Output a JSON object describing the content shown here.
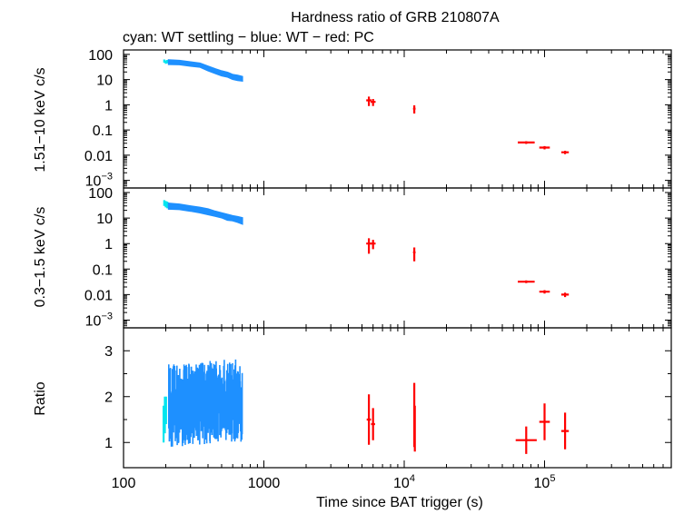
{
  "title": "Hardness ratio of GRB 210807A",
  "subtitle": "cyan: WT settling − blue: WT − red: PC",
  "xlabel": "Time since BAT trigger (s)",
  "colors": {
    "cyan": "#00e5ee",
    "blue": "#1e90ff",
    "red": "#ff0000",
    "axis": "#000000"
  },
  "chart_data": [
    {
      "type": "scatter",
      "ylabel": "1.51−10 keV c/s",
      "xscale": "log",
      "yscale": "log",
      "xlim": [
        100,
        800000
      ],
      "ylim": [
        0.0005,
        150
      ],
      "yticks": [
        {
          "v": 100,
          "label": "100"
        },
        {
          "v": 10,
          "label": "10"
        },
        {
          "v": 1,
          "label": "1"
        },
        {
          "v": 0.1,
          "label": "0.1"
        },
        {
          "v": 0.01,
          "label": "0.01"
        },
        {
          "v": 0.001,
          "label": "10",
          "sup": "−3"
        }
      ],
      "series": [
        {
          "color": "cyan",
          "points": [
            [
              195,
              55,
              8,
              3
            ],
            [
              200,
              50,
              8,
              3
            ],
            [
              205,
              52,
              8,
              3
            ]
          ]
        },
        {
          "color": "blue",
          "band": true,
          "points": [
            [
              210,
              50,
              18
            ],
            [
              250,
              48,
              16
            ],
            [
              300,
              42,
              14
            ],
            [
              350,
              38,
              12
            ],
            [
              400,
              28,
              10
            ],
            [
              450,
              22,
              8
            ],
            [
              500,
              18,
              7
            ],
            [
              550,
              16,
              6
            ],
            [
              600,
              13,
              5
            ],
            [
              650,
              12,
              5
            ],
            [
              700,
              11,
              4
            ]
          ]
        },
        {
          "color": "red",
          "points": [
            [
              5600,
              1.5,
              0.6,
              250
            ],
            [
              6000,
              1.3,
              0.4,
              250
            ],
            [
              11800,
              0.7,
              0.25,
              250
            ],
            [
              74000,
              0.032,
              0.004,
              11000
            ],
            [
              100000,
              0.02,
              0.003,
              9000
            ],
            [
              140000,
              0.013,
              0.002,
              9000
            ]
          ]
        }
      ]
    },
    {
      "type": "scatter",
      "ylabel": "0.3−1.5 keV c/s",
      "xscale": "log",
      "yscale": "log",
      "xlim": [
        100,
        800000
      ],
      "ylim": [
        0.0005,
        150
      ],
      "yticks": [
        {
          "v": 100,
          "label": "100"
        },
        {
          "v": 10,
          "label": "10"
        },
        {
          "v": 1,
          "label": "1"
        },
        {
          "v": 0.1,
          "label": "0.1"
        },
        {
          "v": 0.01,
          "label": "0.01"
        },
        {
          "v": 0.001,
          "label": "10",
          "sup": "−3"
        }
      ],
      "series": [
        {
          "color": "cyan",
          "points": [
            [
              195,
              40,
              10,
              3
            ],
            [
              200,
              36,
              10,
              3
            ],
            [
              205,
              34,
              10,
              3
            ]
          ]
        },
        {
          "color": "blue",
          "band": true,
          "points": [
            [
              210,
              30,
              14
            ],
            [
              250,
              28,
              12
            ],
            [
              300,
              24,
              10
            ],
            [
              350,
              21,
              9
            ],
            [
              400,
              18,
              8
            ],
            [
              450,
              15,
              6
            ],
            [
              500,
              13,
              5
            ],
            [
              550,
              11,
              5
            ],
            [
              600,
              10,
              4
            ],
            [
              650,
              9,
              4
            ],
            [
              700,
              8,
              4
            ]
          ]
        },
        {
          "color": "red",
          "points": [
            [
              5600,
              1.0,
              0.6,
              250
            ],
            [
              6000,
              1.0,
              0.4,
              250
            ],
            [
              11800,
              0.45,
              0.25,
              250
            ],
            [
              74000,
              0.032,
              0.004,
              11000
            ],
            [
              100000,
              0.013,
              0.002,
              9000
            ],
            [
              140000,
              0.01,
              0.002,
              9000
            ]
          ]
        }
      ]
    },
    {
      "type": "scatter",
      "ylabel": "Ratio",
      "xscale": "log",
      "yscale": "linear",
      "xlim": [
        100,
        800000
      ],
      "ylim": [
        0.45,
        3.5
      ],
      "yticks": [
        {
          "v": 1,
          "label": "1"
        },
        {
          "v": 2,
          "label": "2"
        },
        {
          "v": 3,
          "label": "3"
        }
      ],
      "xticks": [
        {
          "v": 100,
          "label": "100"
        },
        {
          "v": 1000,
          "label": "1000"
        },
        {
          "v": 10000,
          "label": "10",
          "sup": "4"
        },
        {
          "v": 100000,
          "label": "10",
          "sup": "5"
        }
      ],
      "series": [
        {
          "color": "cyan",
          "points": [
            [
              193,
              1.4,
              0.4,
              2
            ],
            [
              197,
              1.6,
              0.4,
              2
            ],
            [
              201,
              1.7,
              0.3,
              2
            ]
          ]
        },
        {
          "color": "blue",
          "noisy": true,
          "points": [
            [
              210,
              1.7,
              0.8
            ],
            [
              700,
              1.8,
              0.8
            ]
          ]
        },
        {
          "color": "red",
          "points": [
            [
              5600,
              1.5,
              0.55,
              200
            ],
            [
              6000,
              1.4,
              0.35,
              200
            ],
            [
              11800,
              1.6,
              0.7,
              200
            ],
            [
              11900,
              1.3,
              0.5,
              200
            ],
            [
              74000,
              1.05,
              0.3,
              14000
            ],
            [
              100000,
              1.45,
              0.4,
              9000
            ],
            [
              140000,
              1.25,
              0.4,
              9000
            ]
          ]
        }
      ]
    }
  ]
}
